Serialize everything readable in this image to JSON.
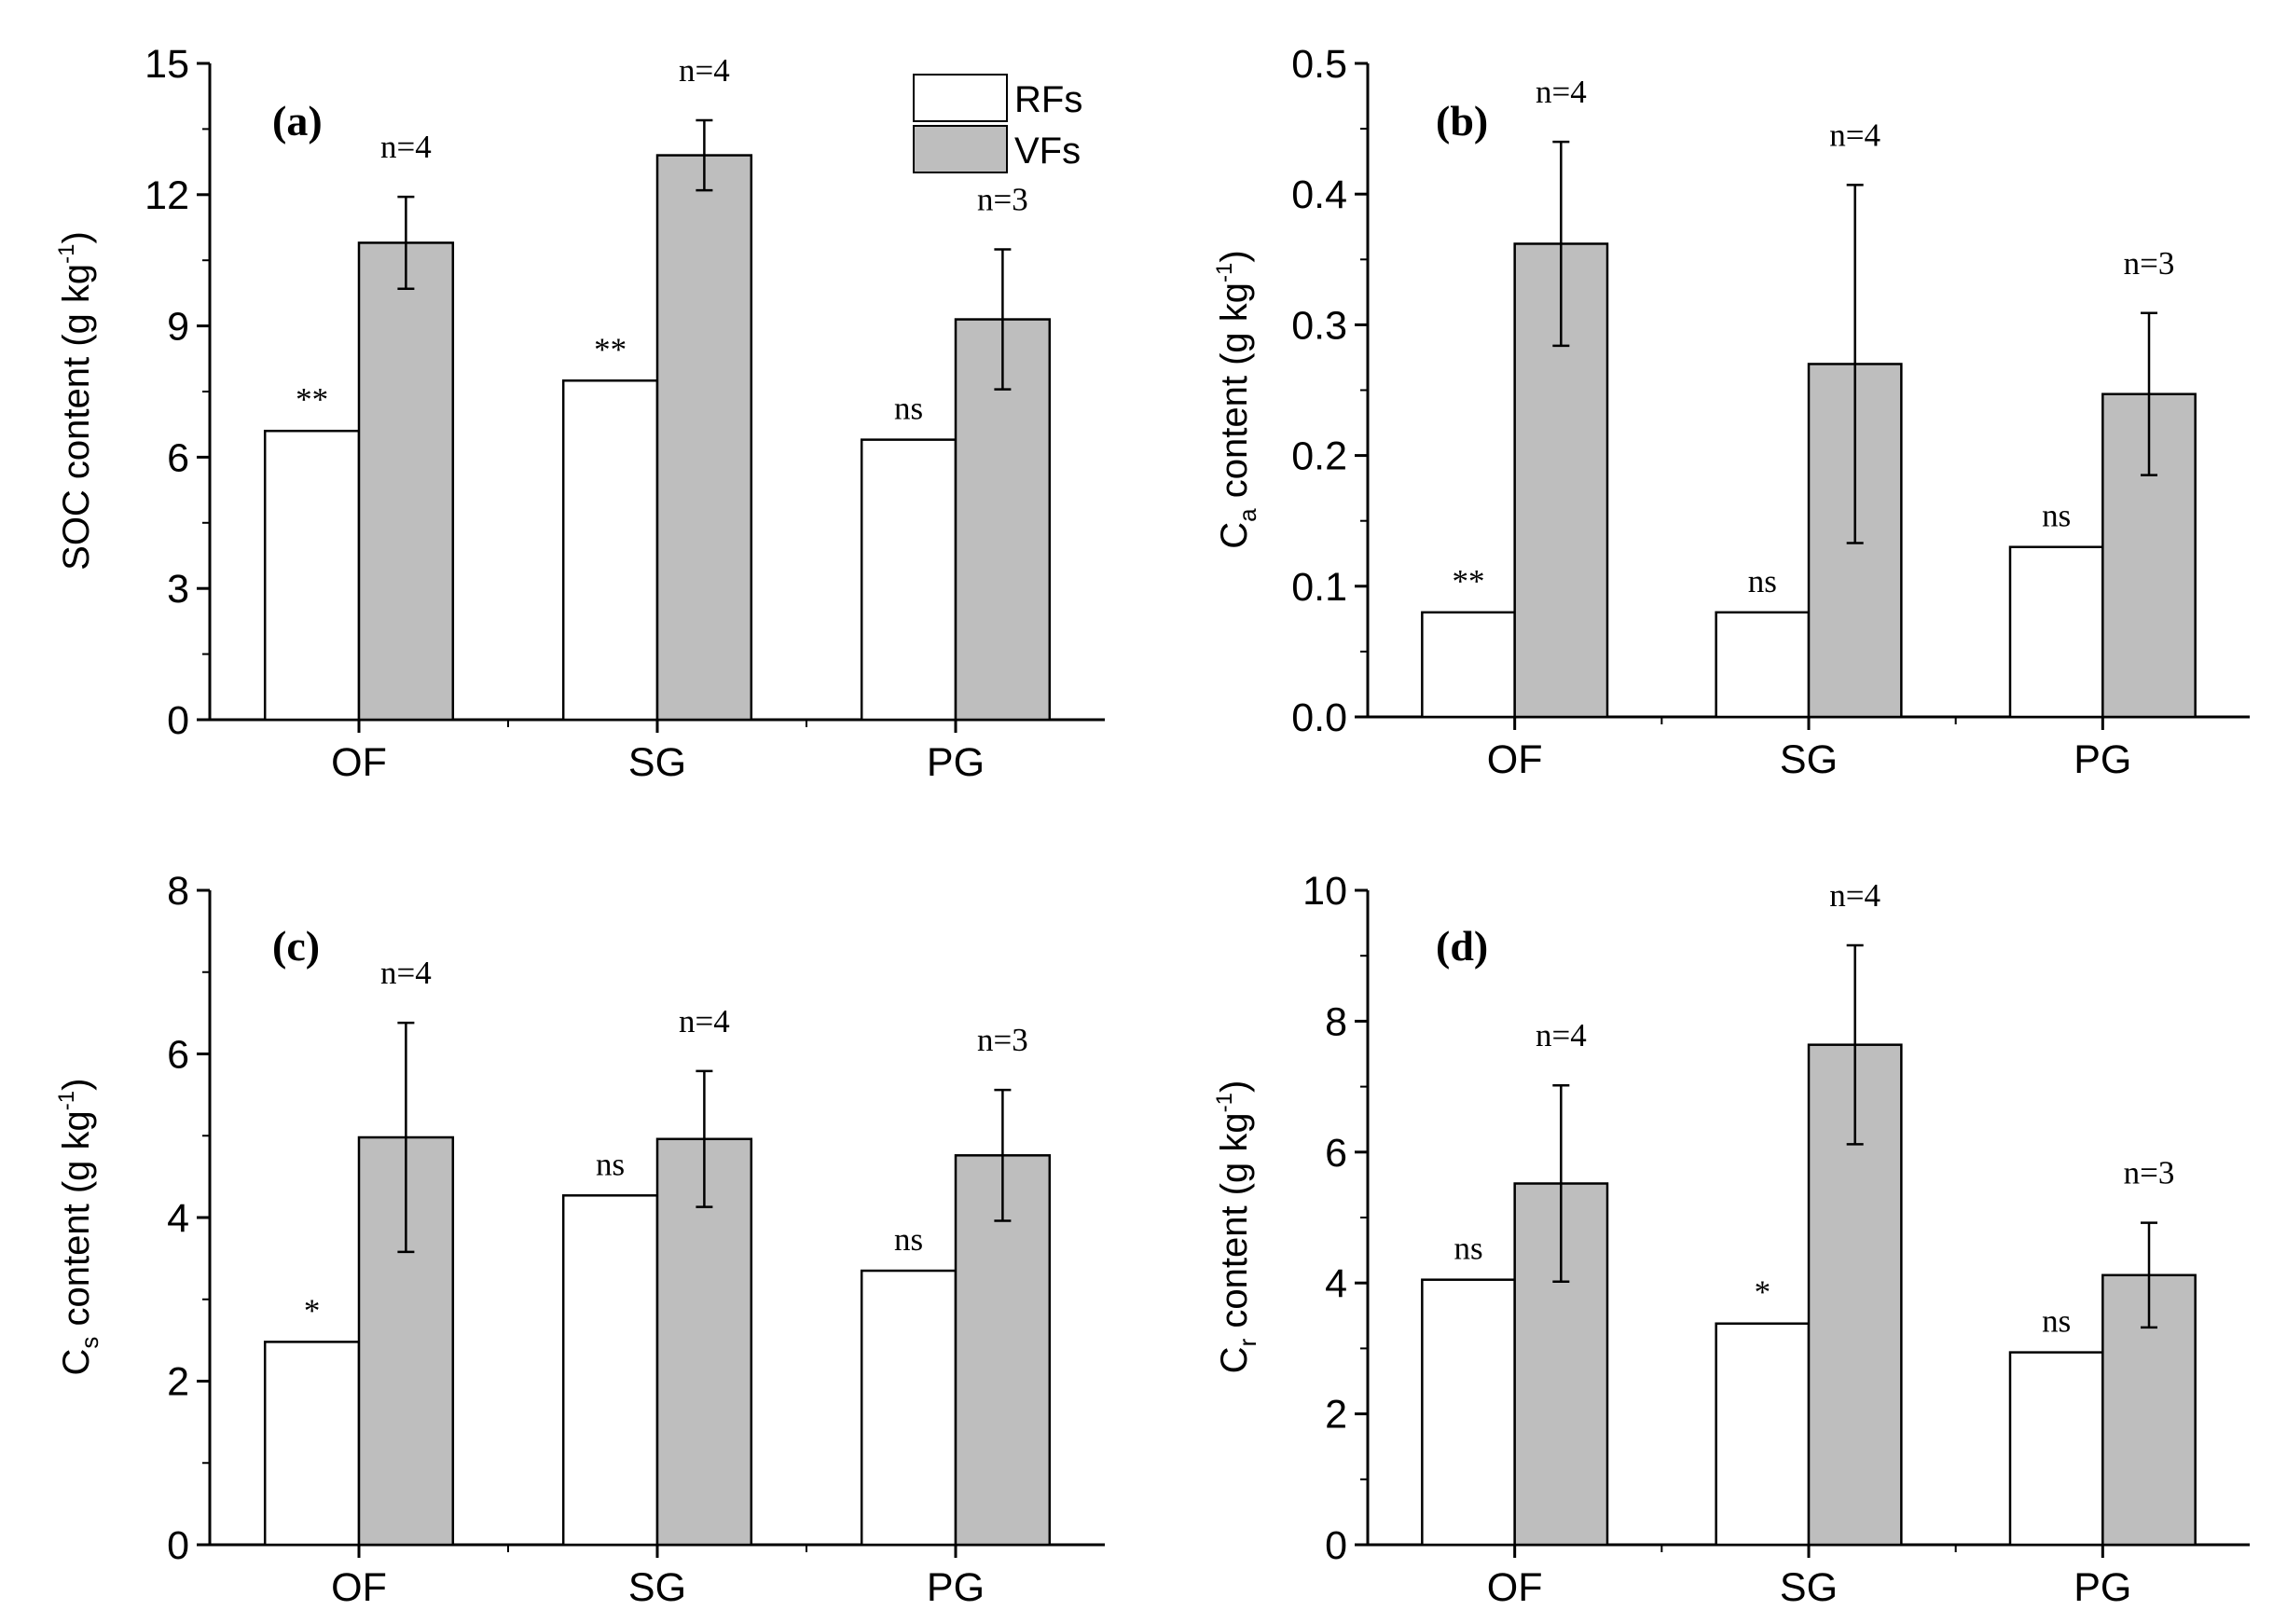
{
  "legend": {
    "items": [
      {
        "label": "RFs",
        "color": "#ffffff"
      },
      {
        "label": "VFs",
        "color": "#bebebe"
      }
    ]
  },
  "chart_data": [
    {
      "type": "bar",
      "panel": "(a)",
      "categories": [
        "OF",
        "SG",
        "PG"
      ],
      "ylabel": {
        "main": "SOC content (g kg",
        "sup": "-1",
        "close": ")"
      },
      "ylim": [
        0,
        15
      ],
      "yticks": [
        0,
        3,
        6,
        9,
        12,
        15
      ],
      "ytick_labels": [
        "0",
        "3",
        "6",
        "9",
        "12",
        "15"
      ],
      "series": [
        {
          "name": "RFs",
          "values": [
            6.6,
            7.75,
            6.4
          ],
          "errors": [
            null,
            null,
            null
          ],
          "sig": [
            "**",
            "**",
            "ns"
          ]
        },
        {
          "name": "VFs",
          "values": [
            10.9,
            12.9,
            9.15
          ],
          "errors": [
            1.05,
            0.8,
            1.6
          ],
          "n": [
            "n=4",
            "n=4",
            "n=3"
          ]
        }
      ]
    },
    {
      "type": "bar",
      "panel": "(b)",
      "categories": [
        "OF",
        "SG",
        "PG"
      ],
      "ylabel": {
        "main": "C",
        "sub": "a",
        "rest": " content (g kg",
        "sup": "-1",
        "close": ")"
      },
      "ylim": [
        0,
        0.5
      ],
      "yticks": [
        0,
        0.1,
        0.2,
        0.3,
        0.4,
        0.5
      ],
      "ytick_labels": [
        "0.0",
        "0.1",
        "0.2",
        "0.3",
        "0.4",
        "0.5"
      ],
      "series": [
        {
          "name": "RFs",
          "values": [
            0.08,
            0.08,
            0.13
          ],
          "errors": [
            null,
            null,
            null
          ],
          "sig": [
            "**",
            "ns",
            "ns"
          ]
        },
        {
          "name": "VFs",
          "values": [
            0.362,
            0.27,
            0.247
          ],
          "errors": [
            0.078,
            0.137,
            0.062
          ],
          "n": [
            "n=4",
            "n=4",
            "n=3"
          ]
        }
      ]
    },
    {
      "type": "bar",
      "panel": "(c)",
      "categories": [
        "OF",
        "SG",
        "PG"
      ],
      "ylabel": {
        "main": "C",
        "sub": "s",
        "rest": " content (g kg",
        "sup": "-1",
        "close": ")"
      },
      "ylim": [
        0,
        8
      ],
      "yticks": [
        0,
        2,
        4,
        6,
        8
      ],
      "ytick_labels": [
        "0",
        "2",
        "4",
        "6",
        "8"
      ],
      "series": [
        {
          "name": "RFs",
          "values": [
            2.48,
            4.27,
            3.35
          ],
          "errors": [
            null,
            null,
            null
          ],
          "sig": [
            "*",
            "ns",
            "ns"
          ]
        },
        {
          "name": "VFs",
          "values": [
            4.98,
            4.96,
            4.76
          ],
          "errors": [
            1.4,
            0.83,
            0.8
          ],
          "n": [
            "n=4",
            "n=4",
            "n=3"
          ]
        }
      ]
    },
    {
      "type": "bar",
      "panel": "(d)",
      "categories": [
        "OF",
        "SG",
        "PG"
      ],
      "ylabel": {
        "main": "C",
        "sub": "r",
        "rest": " content (g kg",
        "sup": "-1",
        "close": ")"
      },
      "ylim": [
        0,
        10
      ],
      "yticks": [
        0,
        2,
        4,
        6,
        8,
        10
      ],
      "ytick_labels": [
        "0",
        "2",
        "4",
        "6",
        "8",
        "10"
      ],
      "series": [
        {
          "name": "RFs",
          "values": [
            4.05,
            3.38,
            2.94
          ],
          "errors": [
            null,
            null,
            null
          ],
          "sig": [
            "ns",
            "*",
            "ns"
          ]
        },
        {
          "name": "VFs",
          "values": [
            5.52,
            7.64,
            4.12
          ],
          "errors": [
            1.5,
            1.52,
            0.8
          ],
          "n": [
            "n=4",
            "n=4",
            "n=3"
          ]
        }
      ]
    }
  ]
}
